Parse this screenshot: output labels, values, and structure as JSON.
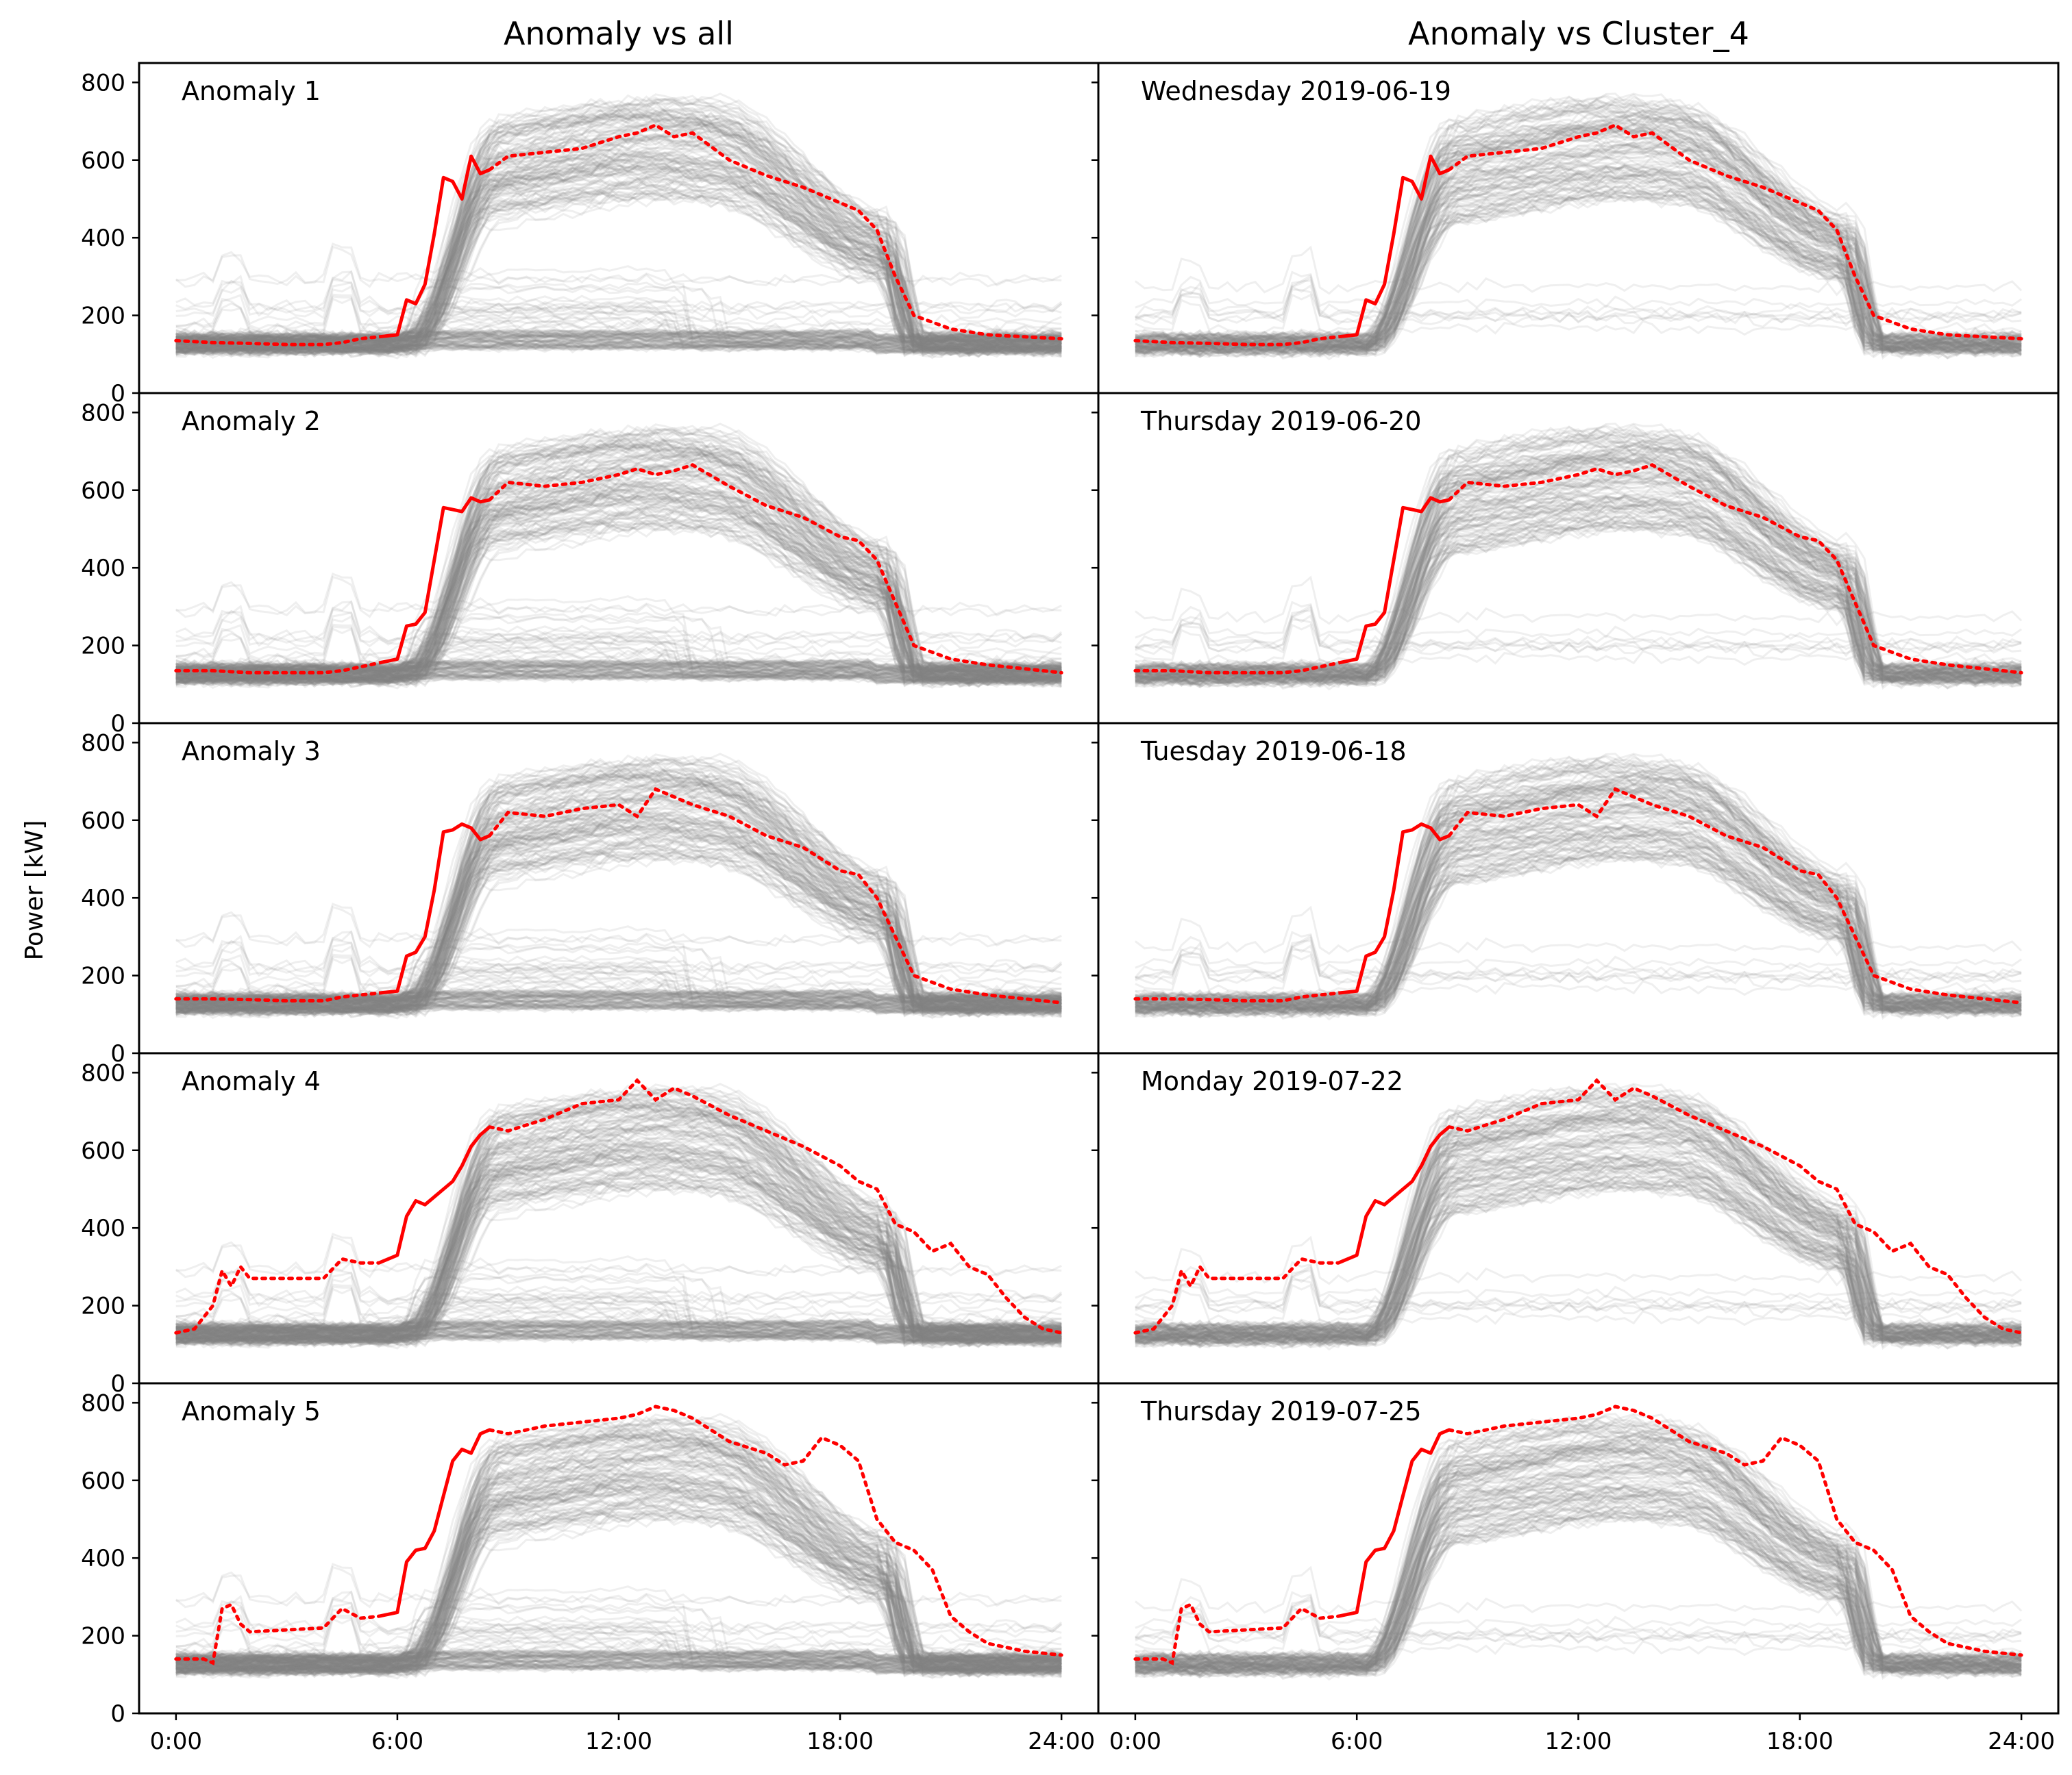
{
  "chart_data": {
    "type": "line",
    "ylabel": "Power [kW]",
    "ylim": [
      0,
      850
    ],
    "xlim": [
      -1,
      25
    ],
    "yticks": [
      0,
      200,
      400,
      600,
      800
    ],
    "xticks": [
      0,
      6,
      12,
      18,
      24
    ],
    "xtick_labels": [
      "0:00",
      "6:00",
      "12:00",
      "18:00",
      "24:00"
    ],
    "column_titles": [
      "Anomaly vs all",
      "Anomaly vs Cluster_4"
    ],
    "colors": {
      "anomaly": "#ff0000",
      "background": "#808080",
      "observed_end_hour": 8.5
    },
    "panels": [
      {
        "left_label": "Anomaly 1",
        "right_label": "Wednesday 2019-06-19",
        "x": [
          0,
          1,
          2,
          3,
          4,
          4.5,
          5,
          5.5,
          6,
          6.25,
          6.5,
          6.75,
          7,
          7.25,
          7.5,
          7.75,
          8,
          8.25,
          8.5,
          9,
          10,
          11,
          12,
          12.5,
          13,
          13.5,
          14,
          15,
          16,
          17,
          18,
          18.5,
          19,
          19.5,
          20,
          21,
          22,
          23,
          24
        ],
        "y": [
          135,
          130,
          128,
          125,
          125,
          130,
          140,
          145,
          150,
          240,
          230,
          280,
          410,
          555,
          545,
          500,
          610,
          565,
          575,
          610,
          620,
          630,
          660,
          670,
          690,
          660,
          670,
          600,
          560,
          530,
          490,
          470,
          420,
          300,
          200,
          165,
          150,
          145,
          140
        ]
      },
      {
        "left_label": "Anomaly 2",
        "right_label": "Thursday 2019-06-20",
        "x": [
          0,
          1,
          2,
          3,
          4,
          4.5,
          5,
          5.5,
          6,
          6.25,
          6.5,
          6.75,
          7,
          7.25,
          7.5,
          7.75,
          8,
          8.25,
          8.5,
          9,
          10,
          11,
          12,
          12.5,
          13,
          13.5,
          14,
          15,
          16,
          17,
          18,
          18.5,
          19,
          19.5,
          20,
          21,
          22,
          23,
          24
        ],
        "y": [
          135,
          135,
          130,
          130,
          130,
          135,
          145,
          155,
          165,
          250,
          255,
          285,
          420,
          555,
          550,
          545,
          580,
          570,
          575,
          620,
          610,
          620,
          640,
          655,
          640,
          650,
          665,
          610,
          560,
          530,
          480,
          470,
          420,
          310,
          200,
          165,
          150,
          140,
          130
        ]
      },
      {
        "left_label": "Anomaly 3",
        "right_label": "Tuesday 2019-06-18",
        "x": [
          0,
          1,
          2,
          3,
          4,
          4.5,
          5,
          5.5,
          6,
          6.25,
          6.5,
          6.75,
          7,
          7.25,
          7.5,
          7.75,
          8,
          8.25,
          8.5,
          9,
          10,
          11,
          12,
          12.5,
          13,
          13.5,
          14,
          15,
          16,
          17,
          18,
          18.5,
          19,
          19.5,
          20,
          21,
          22,
          23,
          24
        ],
        "y": [
          140,
          140,
          138,
          135,
          135,
          145,
          150,
          155,
          160,
          250,
          260,
          300,
          420,
          570,
          575,
          590,
          580,
          550,
          560,
          620,
          610,
          630,
          640,
          610,
          680,
          660,
          640,
          610,
          560,
          530,
          470,
          460,
          400,
          300,
          200,
          165,
          150,
          140,
          130
        ]
      },
      {
        "left_label": "Anomaly 4",
        "right_label": "Monday 2019-07-22",
        "x": [
          0,
          0.5,
          1,
          1.25,
          1.5,
          1.75,
          2,
          3,
          4,
          4.5,
          5,
          5.5,
          6,
          6.25,
          6.5,
          6.75,
          7,
          7.25,
          7.5,
          7.75,
          8,
          8.25,
          8.5,
          9,
          10,
          11,
          12,
          12.5,
          13,
          13.5,
          14,
          15,
          16,
          17,
          18,
          18.5,
          19,
          19.5,
          20,
          20.5,
          21,
          21.5,
          22,
          22.5,
          23,
          23.5,
          24
        ],
        "y": [
          130,
          140,
          200,
          290,
          250,
          300,
          270,
          270,
          270,
          320,
          310,
          310,
          330,
          430,
          470,
          460,
          480,
          500,
          520,
          560,
          610,
          640,
          660,
          650,
          680,
          720,
          730,
          780,
          730,
          760,
          740,
          690,
          650,
          610,
          560,
          520,
          500,
          410,
          390,
          340,
          360,
          300,
          280,
          220,
          170,
          140,
          130
        ]
      },
      {
        "left_label": "Anomaly 5",
        "right_label": "Thursday 2019-07-25",
        "x": [
          0,
          0.75,
          1,
          1.25,
          1.5,
          1.75,
          2,
          3,
          4,
          4.5,
          5,
          5.5,
          6,
          6.25,
          6.5,
          6.75,
          7,
          7.25,
          7.5,
          7.75,
          8,
          8.25,
          8.5,
          9,
          10,
          11,
          12,
          12.5,
          13,
          13.5,
          14,
          15,
          16,
          16.5,
          17,
          17.5,
          18,
          18.5,
          19,
          19.5,
          20,
          20.5,
          21,
          21.5,
          22,
          23,
          24
        ],
        "y": [
          140,
          140,
          130,
          270,
          280,
          230,
          210,
          215,
          220,
          270,
          245,
          250,
          260,
          390,
          420,
          425,
          470,
          560,
          650,
          680,
          670,
          720,
          730,
          720,
          740,
          750,
          760,
          770,
          790,
          780,
          760,
          700,
          670,
          640,
          650,
          710,
          690,
          650,
          500,
          440,
          420,
          370,
          250,
          210,
          180,
          160,
          150
        ]
      }
    ]
  }
}
